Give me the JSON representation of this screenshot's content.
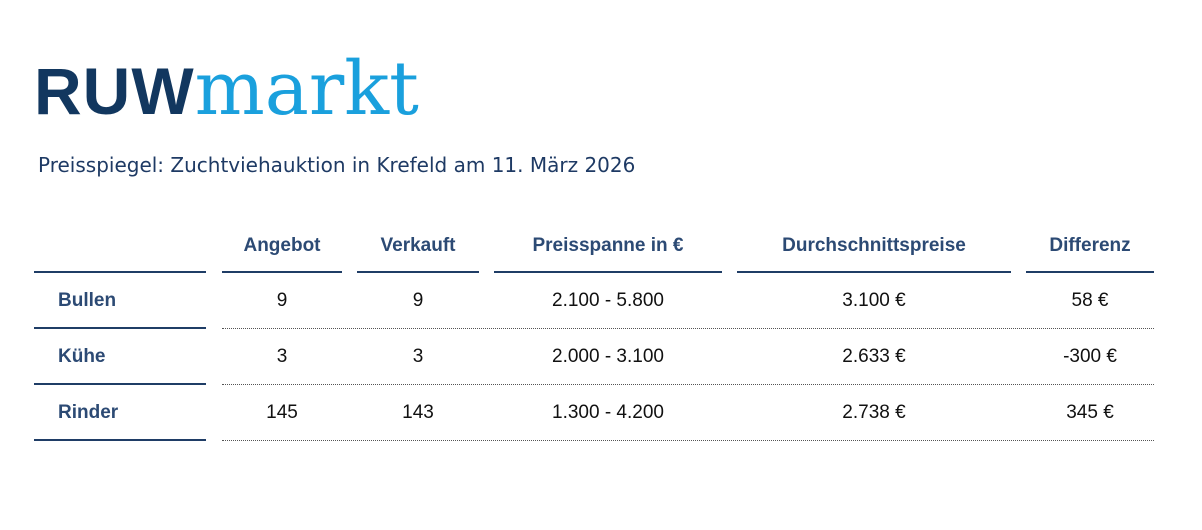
{
  "logo": {
    "part1": "RUW",
    "part2": "markt"
  },
  "subtitle": "Preisspiegel: Zuchtviehauktion in Krefeld am 11. März 2026",
  "table": {
    "headers": [
      "Angebot",
      "Verkauft",
      "Preisspanne in €",
      "Durchschnittspreise",
      "Differenz"
    ],
    "rows": [
      {
        "label": "Bullen",
        "values": [
          "9",
          "9",
          "2.100 - 5.800",
          "3.100 €",
          "58 €"
        ]
      },
      {
        "label": "Kühe",
        "values": [
          "3",
          "3",
          "2.000 - 3.100",
          "2.633 €",
          "-300 €"
        ]
      },
      {
        "label": "Rinder",
        "values": [
          "145",
          "143",
          "1.300 - 4.200",
          "2.738 €",
          "345 €"
        ]
      }
    ]
  },
  "colors": {
    "navy": "#12375f",
    "brand_blue": "#1aa0dd",
    "header_text": "#2c4a74"
  }
}
